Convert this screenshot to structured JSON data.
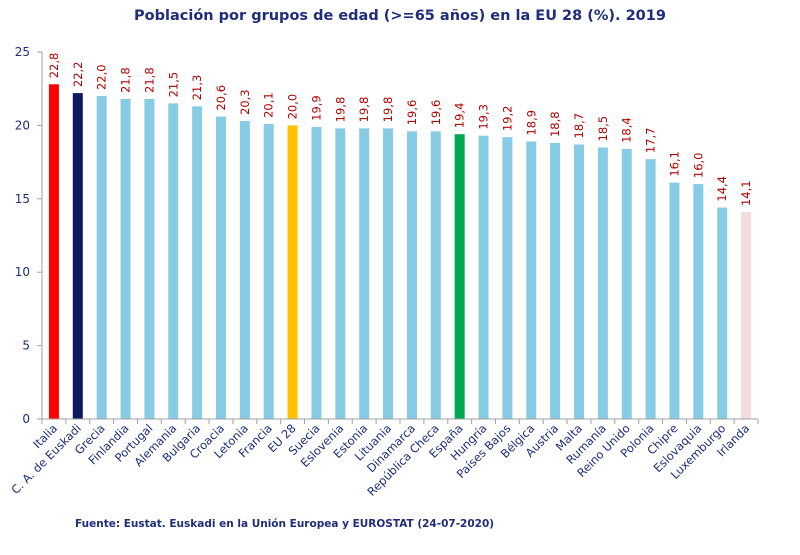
{
  "chart_data": {
    "type": "bar",
    "title": "Población por grupos de edad (>=65 años) en la EU 28 (%). 2019",
    "source": "Fuente: Eustat. Euskadi en la Unión Europea y EUROSTAT (24-07-2020)",
    "xlabel": "",
    "ylabel": "",
    "ylim": [
      0,
      25
    ],
    "yticks": [
      0,
      5,
      10,
      15,
      20,
      25
    ],
    "categories": [
      "Italia",
      "C. A. de Euskadi",
      "Grecia",
      "Finlandia",
      "Portugal",
      "Alemania",
      "Bulgaria",
      "Croacia",
      "Letonia",
      "Francia",
      "EU 28",
      "Suecia",
      "Eslovenia",
      "Estonia",
      "Lituania",
      "Dinamarca",
      "República Checa",
      "España",
      "Hungría",
      "Países Bajos",
      "Bélgica",
      "Austria",
      "Malta",
      "Rumanía",
      "Reino Unido",
      "Polonia",
      "Chipre",
      "Eslovaquia",
      "Luxemburgo",
      "Irlanda"
    ],
    "values": [
      22.8,
      22.2,
      22.0,
      21.8,
      21.8,
      21.5,
      21.3,
      20.6,
      20.3,
      20.1,
      20.0,
      19.9,
      19.8,
      19.8,
      19.8,
      19.6,
      19.6,
      19.4,
      19.3,
      19.2,
      18.9,
      18.8,
      18.7,
      18.5,
      18.4,
      17.7,
      16.1,
      16.0,
      14.4,
      14.1
    ],
    "value_labels": [
      "22,8",
      "22,2",
      "22,0",
      "21,8",
      "21,8",
      "21,5",
      "21,3",
      "20,6",
      "20,3",
      "20,1",
      "20,0",
      "19,9",
      "19,8",
      "19,8",
      "19,8",
      "19,6",
      "19,6",
      "19,4",
      "19,3",
      "19,2",
      "18,9",
      "18,8",
      "18,7",
      "18,5",
      "18,4",
      "17,7",
      "16,1",
      "16,0",
      "14,4",
      "14,1"
    ],
    "colors": [
      "#ff0000",
      "#0d1b5e",
      "#87cce4",
      "#87cce4",
      "#87cce4",
      "#87cce4",
      "#87cce4",
      "#87cce4",
      "#87cce4",
      "#87cce4",
      "#ffc000",
      "#87cce4",
      "#87cce4",
      "#87cce4",
      "#87cce4",
      "#87cce4",
      "#87cce4",
      "#00a650",
      "#87cce4",
      "#87cce4",
      "#87cce4",
      "#87cce4",
      "#87cce4",
      "#87cce4",
      "#87cce4",
      "#87cce4",
      "#87cce4",
      "#87cce4",
      "#87cce4",
      "#f2dcdc"
    ],
    "axis_color": "#a0a0a0",
    "grid": false,
    "legend": "none"
  }
}
